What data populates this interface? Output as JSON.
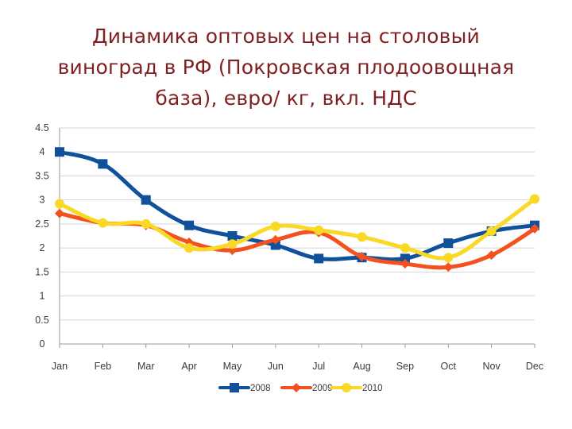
{
  "title_lines": [
    "Динамика оптовых цен на столовый",
    "виноград в РФ (Покровская плодоовощная",
    "база), евро/ кг, вкл. НДС"
  ],
  "colors": {
    "title": "#7f1f1f",
    "grid": "#d4d4d4",
    "axis": "#9a9a9a",
    "text": "#3a3a3a"
  },
  "chart_data": {
    "type": "line",
    "title": "Динамика оптовых цен на столовый виноград в РФ (Покровская плодоовощная база), евро/ кг, вкл. НДС",
    "xlabel": "",
    "ylabel": "",
    "categories": [
      "Jan",
      "Feb",
      "Mar",
      "Apr",
      "May",
      "Jun",
      "Jul",
      "Aug",
      "Sep",
      "Oct",
      "Nov",
      "Dec"
    ],
    "ylim": [
      0,
      4.5
    ],
    "yticks": [
      {
        "value": 4.5,
        "label": "4.5"
      },
      {
        "value": 4,
        "label": "4"
      },
      {
        "value": 3.5,
        "label": "3.5"
      },
      {
        "value": 3,
        "label": "3"
      },
      {
        "value": 2.5,
        "label": "2.5"
      },
      {
        "value": 2,
        "label": "2"
      },
      {
        "value": 1.5,
        "label": "1.5"
      },
      {
        "value": 1,
        "label": "1"
      },
      {
        "value": 0.5,
        "label": "0.5"
      },
      {
        "value": 0,
        "label": "0"
      }
    ],
    "grid": true,
    "legend": "bottom",
    "series": [
      {
        "name": "2008",
        "color": "#11519b",
        "marker": "square",
        "values": [
          4.0,
          3.75,
          3.0,
          2.47,
          2.25,
          2.06,
          1.78,
          1.8,
          1.78,
          2.1,
          2.35,
          2.47
        ]
      },
      {
        "name": "2009",
        "color": "#f4511e",
        "marker": "diamond",
        "values": [
          2.72,
          2.52,
          2.47,
          2.12,
          1.95,
          2.17,
          2.32,
          1.82,
          1.67,
          1.6,
          1.85,
          2.4
        ]
      },
      {
        "name": "2010",
        "color": "#f9d826",
        "marker": "circle",
        "values": [
          2.92,
          2.52,
          2.5,
          2.0,
          2.08,
          2.45,
          2.37,
          2.23,
          2.0,
          1.8,
          2.35,
          3.02
        ]
      }
    ]
  }
}
